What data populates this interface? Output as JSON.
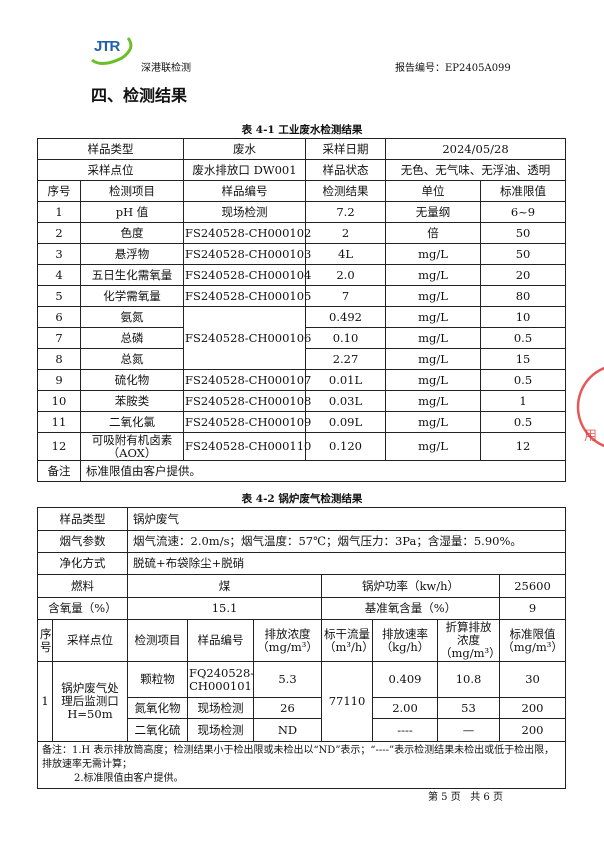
{
  "header": {
    "logo_text": "JTR",
    "company": "深港联检测",
    "report_no": "报告编号：EP2405A099",
    "brand_color": "#1f5fae",
    "logo_accent": "#6cbf2a"
  },
  "section_title": "四、检测结果",
  "table1": {
    "caption": "表 4-1  工业废水检测结果",
    "info": [
      [
        "样品类型",
        "废水",
        "采样日期",
        "2024/05/28"
      ],
      [
        "采样点位",
        "废水排放口 DW001",
        "样品状态",
        "无色、无气味、无浮油、透明"
      ]
    ],
    "headers": [
      "序号",
      "检测项目",
      "样品编号",
      "检测结果",
      "单位",
      "标准限值"
    ],
    "rows": [
      [
        "1",
        "pH 值",
        "现场检测",
        "7.2",
        "无量纲",
        "6~9"
      ],
      [
        "2",
        "色度",
        "FS240528-CH000102",
        "2",
        "倍",
        "50"
      ],
      [
        "3",
        "悬浮物",
        "FS240528-CH000103",
        "4L",
        "mg/L",
        "50"
      ],
      [
        "4",
        "五日生化需氧量",
        "FS240528-CH000104",
        "2.0",
        "mg/L",
        "20"
      ],
      [
        "5",
        "化学需氧量",
        "FS240528-CH000105",
        "7",
        "mg/L",
        "80"
      ],
      [
        "6",
        "氨氮",
        "FS240528-CH000106",
        "0.492",
        "mg/L",
        "10"
      ],
      [
        "7",
        "总磷",
        "",
        "0.10",
        "mg/L",
        "0.5"
      ],
      [
        "8",
        "总氮",
        "",
        "2.27",
        "mg/L",
        "15"
      ],
      [
        "9",
        "硫化物",
        "FS240528-CH000107",
        "0.01L",
        "mg/L",
        "0.5"
      ],
      [
        "10",
        "苯胺类",
        "FS240528-CH000108",
        "0.03L",
        "mg/L",
        "1"
      ],
      [
        "11",
        "二氧化氯",
        "FS240528-CH000109",
        "0.09L",
        "mg/L",
        "0.5"
      ],
      [
        "12",
        "可吸附有机卤素（AOX）",
        "FS240528-CH000110",
        "0.120",
        "mg/L",
        "12"
      ]
    ],
    "note_label": "备注",
    "note": "标准限值由客户提供。"
  },
  "table2": {
    "caption": "表 4-2  锅炉废气检测结果",
    "sample_type_label": "样品类型",
    "sample_type": "锅炉废气",
    "flue_label": "烟气参数",
    "flue": "烟气流速：2.0m/s；烟气温度：57℃；烟气压力：3Pa；含湿量：5.90%。",
    "purify_label": "净化方式",
    "purify": "脱硫+布袋除尘+脱硝",
    "fuel_label": "燃料",
    "fuel": "煤",
    "power_label": "锅炉功率（kw/h）",
    "power": "25600",
    "oxygen_label": "含氧量（%）",
    "oxygen": "15.1",
    "base_oxygen_label": "基准氧含量（%）",
    "base_oxygen": "9",
    "headers": [
      "序号",
      "采样点位",
      "检测项目",
      "样品编号",
      "排放浓度（mg/m³）",
      "标干流量（m³/h）",
      "排放速率（kg/h）",
      "折算排放浓度（mg/m³）",
      "标准限值（mg/m³）"
    ],
    "seq": "1",
    "point": "锅炉废气处理后监测口H=50m",
    "flow": "77110",
    "rows": [
      [
        "颗粒物",
        "FQ240528-CH000101",
        "5.3",
        "0.409",
        "10.8",
        "30"
      ],
      [
        "氮氧化物",
        "现场检测",
        "26",
        "2.00",
        "53",
        "200"
      ],
      [
        "二氧化硫",
        "现场检测",
        "ND",
        "----",
        "—",
        "200"
      ]
    ],
    "note1": "备注：1.H 表示排放筒高度；检测结果小于检出限或未检出以“ND”表示；“----”表示检测结果未检出或低于检出限，排放速率无需计算；",
    "note2": "2.标准限值由客户提供。"
  },
  "footer": {
    "page": "第 5 页   共 6 页"
  },
  "stamp_color": "#e23b3b"
}
